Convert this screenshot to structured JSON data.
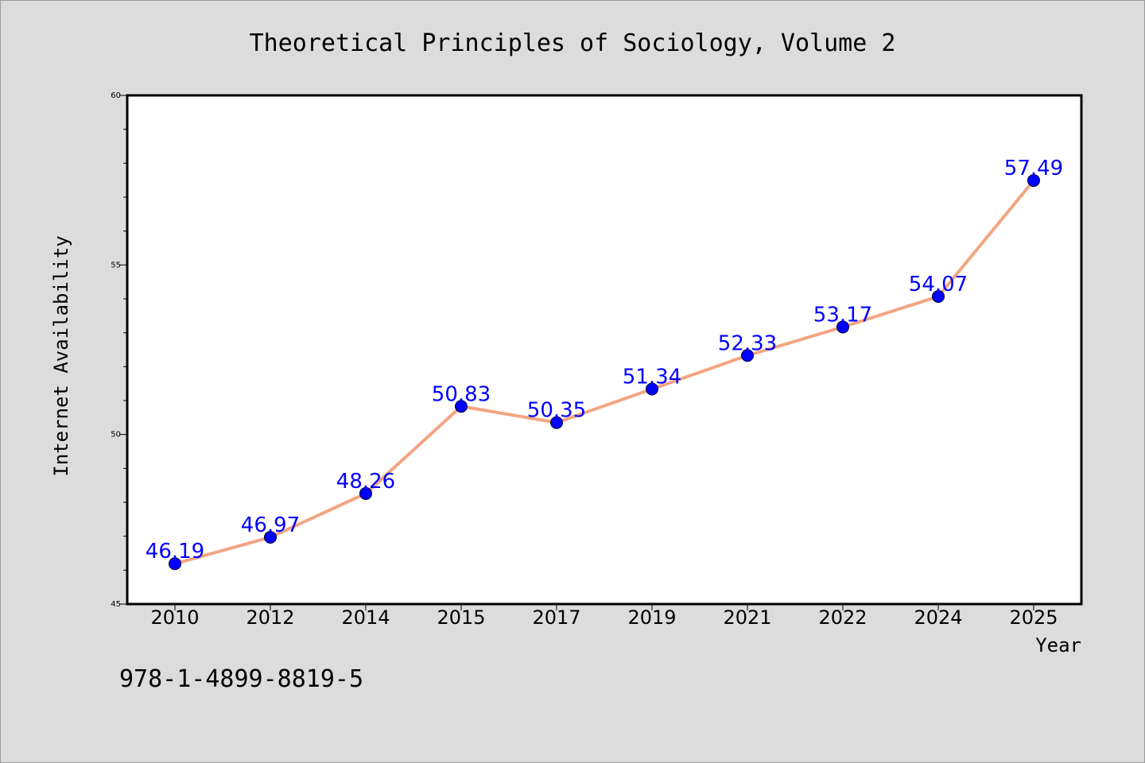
{
  "chart_data": {
    "type": "line",
    "title": "Theoretical Principles of Sociology, Volume 2",
    "xlabel": "Year",
    "ylabel": "Internet Availability",
    "categories": [
      "2010",
      "2012",
      "2014",
      "2015",
      "2017",
      "2019",
      "2021",
      "2022",
      "2024",
      "2025"
    ],
    "series": [
      {
        "values": [
          46.19,
          46.97,
          48.26,
          50.83,
          50.35,
          51.34,
          52.33,
          53.17,
          54.07,
          57.49
        ],
        "data_labels": [
          "46.19",
          "46.97",
          "48.26",
          "50.83",
          "50.35",
          "51.34",
          "52.33",
          "53.17",
          "54.07",
          "57.49"
        ],
        "line_color": "#f4a582",
        "marker_color": "#0000ff",
        "label_color": "#0000ff"
      }
    ],
    "ylim": [
      45,
      60
    ],
    "yticks": [
      "45",
      "50",
      "55",
      "60"
    ],
    "grid": false,
    "legend": "none"
  },
  "footer": {
    "isbn": "978-1-4899-8819-5"
  },
  "colors": {
    "background": "#dcdcdc",
    "plot_background": "#ffffff"
  }
}
